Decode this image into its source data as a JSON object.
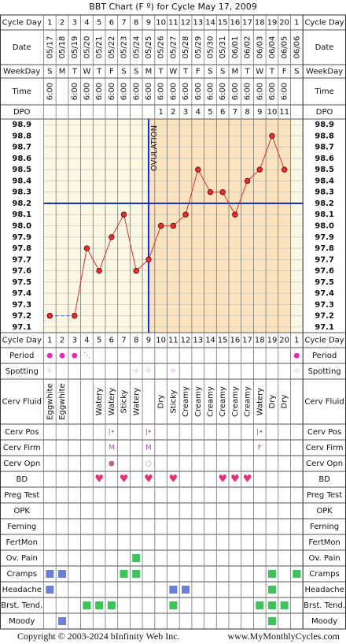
{
  "title": "BBT Chart (F º) for Cycle May 17, 2009",
  "rows": [
    {
      "label": "Cycle Day",
      "cells": [
        "1",
        "2",
        "3",
        "4",
        "5",
        "6",
        "7",
        "8",
        "9",
        "10",
        "11",
        "12",
        "13",
        "14",
        "15",
        "16",
        "17",
        "18",
        "19",
        "20",
        "1"
      ]
    },
    {
      "label": "Date",
      "cells": [
        "05/17",
        "05/18",
        "05/19",
        "05/20",
        "05/21",
        "05/22",
        "05/23",
        "05/24",
        "05/25",
        "05/26",
        "05/27",
        "05/28",
        "05/29",
        "05/30",
        "05/31",
        "06/01",
        "06/02",
        "06/03",
        "06/04",
        "06/05",
        "06/06"
      ]
    },
    {
      "label": "WeekDay",
      "cells": [
        "S",
        "M",
        "T",
        "W",
        "T",
        "F",
        "S",
        "S",
        "M",
        "T",
        "W",
        "T",
        "F",
        "S",
        "S",
        "M",
        "T",
        "W",
        "T",
        "F",
        "S"
      ]
    },
    {
      "label": "Time",
      "cells": [
        "6:00",
        null,
        "6:00",
        "6:00",
        "6:00",
        "6:00",
        "6:00",
        "6:00",
        "6:00",
        "6:00",
        "6:00",
        "6:00",
        "6:00",
        "6:00",
        "6:00",
        "6:00",
        "6:00",
        "6:00",
        "6:00",
        "6:00",
        null
      ]
    },
    {
      "label": "DPO",
      "cells": [
        null,
        null,
        null,
        null,
        null,
        null,
        null,
        null,
        null,
        "1",
        "2",
        "3",
        "4",
        "5",
        "6",
        "7",
        "8",
        "9",
        "10",
        "11",
        null
      ]
    }
  ],
  "chart_data": {
    "type": "line",
    "values": [
      97.2,
      null,
      97.2,
      97.8,
      97.6,
      97.9,
      98.1,
      97.6,
      97.7,
      98.0,
      98.0,
      98.1,
      98.5,
      98.3,
      98.3,
      98.1,
      98.4,
      98.5,
      98.8,
      98.5,
      null
    ],
    "color": "#e03030",
    "ylim": [
      97.05,
      98.95
    ],
    "yticks": [
      98.9,
      98.8,
      98.7,
      98.6,
      98.5,
      98.4,
      98.3,
      98.2,
      98.1,
      {
        "value": 98.0,
        "label": "98.0"
      },
      97.9,
      97.8,
      97.7,
      97.6,
      97.5,
      97.4,
      97.3,
      97.2,
      97.1
    ],
    "coverline": 98.2,
    "coverline_color": "#1030d0",
    "ovulation_day": 9,
    "ovulation_label": "OVULATION",
    "grid": true
  },
  "lower_rows": [
    {
      "label": "Period",
      "color": "#e030b0",
      "cells": [
        "●",
        "●",
        "●",
        "⋱",
        null,
        null,
        null,
        null,
        null,
        null,
        null,
        null,
        null,
        null,
        null,
        null,
        null,
        null,
        null,
        null,
        "●"
      ]
    },
    {
      "label": "Spotting",
      "color": "#e030b0",
      "cells": [
        "⁘",
        null,
        null,
        null,
        null,
        null,
        null,
        "⁘",
        "⁘",
        null,
        "⁘",
        null,
        null,
        null,
        null,
        null,
        null,
        null,
        null,
        null,
        "⁘"
      ]
    },
    {
      "label": "Cerv Fluid",
      "vertical": true,
      "cells": [
        "Eggwhite",
        "Eggwhite",
        null,
        null,
        "Watery",
        "Watery",
        "Sticky",
        "Watery",
        null,
        "Dry",
        "Sticky",
        "Creamy",
        "Creamy",
        "Creamy",
        "Creamy",
        "Creamy",
        "Creamy",
        "Watery",
        "Dry",
        "Dry",
        null
      ]
    },
    {
      "label": "Cerv Pos",
      "color": "#b050c0",
      "cells": [
        null,
        null,
        null,
        null,
        null,
        "|•",
        null,
        null,
        "|•",
        null,
        null,
        null,
        null,
        null,
        null,
        null,
        null,
        "|•",
        null,
        null,
        null
      ]
    },
    {
      "label": "Cerv Firm",
      "color": "#b050c0",
      "cells": [
        null,
        null,
        null,
        null,
        null,
        "M",
        null,
        null,
        "M",
        null,
        null,
        null,
        null,
        null,
        null,
        null,
        null,
        "F",
        null,
        null,
        null
      ]
    },
    {
      "label": "Cerv Opn",
      "color": "#c06090",
      "cells": [
        null,
        null,
        null,
        null,
        null,
        "●",
        null,
        null,
        "○",
        null,
        null,
        null,
        null,
        null,
        null,
        null,
        null,
        null,
        null,
        null,
        null
      ]
    },
    {
      "label": "BD",
      "color": "#e8307a",
      "cells": [
        null,
        null,
        null,
        null,
        "♥",
        null,
        "♥",
        null,
        "♥",
        null,
        "♥",
        null,
        null,
        null,
        "♥",
        "♥",
        "♥",
        null,
        null,
        null,
        null
      ]
    },
    {
      "label": "Preg Test"
    },
    {
      "label": "OPK"
    },
    {
      "label": "Ferning"
    },
    {
      "label": "FertMon"
    },
    {
      "label": "Ov. Pain",
      "marks": [
        null,
        null,
        null,
        null,
        null,
        null,
        null,
        "#3cc45a",
        null,
        null,
        null,
        null,
        null,
        null,
        null,
        null,
        null,
        null,
        null,
        null,
        null
      ]
    },
    {
      "label": "Cramps",
      "marks": [
        "#6b7fd7",
        "#6b7fd7",
        null,
        null,
        null,
        null,
        "#3cc45a",
        "#3cc45a",
        null,
        null,
        null,
        null,
        null,
        null,
        null,
        null,
        null,
        null,
        "#3cc45a",
        null,
        "#3cc45a"
      ]
    },
    {
      "label": "Headache",
      "marks": [
        "#6b7fd7",
        null,
        null,
        null,
        null,
        null,
        null,
        null,
        null,
        null,
        "#6b7fd7",
        "#6b7fd7",
        null,
        null,
        null,
        null,
        null,
        null,
        "#3cc45a",
        null,
        null
      ]
    },
    {
      "label": "Brst. Tend.",
      "marks": [
        null,
        null,
        null,
        "#3cc45a",
        "#3cc45a",
        "#3cc45a",
        null,
        null,
        null,
        null,
        "#3cc45a",
        null,
        null,
        null,
        null,
        null,
        null,
        "#3cc45a",
        "#3cc45a",
        "#3cc45a",
        null
      ]
    },
    {
      "label": "Moody",
      "marks": [
        null,
        "#6b7fd7",
        null,
        null,
        null,
        null,
        null,
        null,
        null,
        null,
        null,
        null,
        null,
        null,
        null,
        null,
        null,
        null,
        "#3cc45a",
        null,
        null
      ]
    }
  ],
  "footer": {
    "copyright": "Copyright © 2003-2024 bInfinity Web Inc.",
    "site": "www.MyMonthlyCycles.com"
  }
}
